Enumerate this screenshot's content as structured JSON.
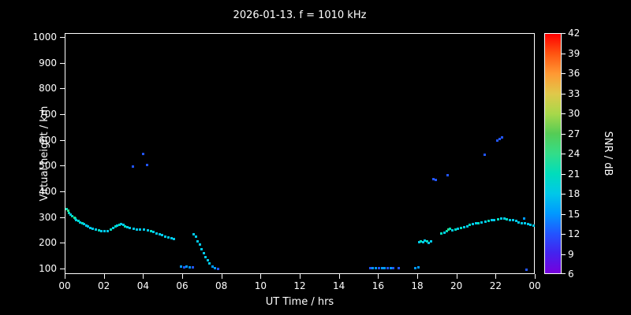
{
  "title": "2026-01-13. f = 1010 kHz",
  "colors": {
    "background": "#000000",
    "foreground": "#ffffff"
  },
  "chart_data": {
    "type": "scatter",
    "title": "2026-01-13. f = 1010 kHz",
    "xlabel": "UT Time / hrs",
    "ylabel": "Virtual height / km",
    "xlim": [
      0,
      24
    ],
    "ylim": [
      79,
      1015
    ],
    "grid": false,
    "x_tick_hours": [
      0,
      2,
      4,
      6,
      8,
      10,
      12,
      14,
      16,
      18,
      20,
      22,
      24
    ],
    "x_tick_labels": [
      "00",
      "02",
      "04",
      "06",
      "08",
      "10",
      "12",
      "14",
      "16",
      "18",
      "20",
      "22",
      "00"
    ],
    "y_ticks": [
      100,
      200,
      300,
      400,
      500,
      600,
      700,
      800,
      900,
      1000
    ],
    "colorbar": {
      "label": "SNR / dB",
      "ticks": [
        6,
        9,
        12,
        15,
        18,
        21,
        24,
        27,
        30,
        33,
        36,
        39,
        42
      ],
      "colors": [
        "#7700dd",
        "#4422ee",
        "#2255ff",
        "#0099ff",
        "#00c8e8",
        "#00ddbb",
        "#33dd88",
        "#55cc55",
        "#a8d84a",
        "#e0c84a",
        "#ff9933",
        "#ff5511",
        "#ff0000"
      ]
    },
    "points": [
      [
        0.08,
        335,
        21
      ],
      [
        0.15,
        328,
        24
      ],
      [
        0.2,
        318,
        21
      ],
      [
        0.25,
        312,
        18
      ],
      [
        0.35,
        308,
        21
      ],
      [
        0.45,
        300,
        24
      ],
      [
        0.5,
        296,
        21
      ],
      [
        0.55,
        292,
        18
      ],
      [
        0.65,
        288,
        21
      ],
      [
        0.75,
        283,
        18
      ],
      [
        0.85,
        280,
        21
      ],
      [
        0.95,
        276,
        18
      ],
      [
        1.05,
        270,
        18
      ],
      [
        1.15,
        266,
        18
      ],
      [
        1.25,
        262,
        18
      ],
      [
        1.4,
        258,
        18
      ],
      [
        1.55,
        254,
        18
      ],
      [
        1.7,
        252,
        21
      ],
      [
        1.85,
        250,
        18
      ],
      [
        2.0,
        248,
        18
      ],
      [
        2.15,
        250,
        18
      ],
      [
        2.3,
        255,
        21
      ],
      [
        2.45,
        260,
        18
      ],
      [
        2.55,
        266,
        21
      ],
      [
        2.65,
        270,
        18
      ],
      [
        2.75,
        274,
        21
      ],
      [
        2.85,
        276,
        18
      ],
      [
        2.95,
        272,
        18
      ],
      [
        3.05,
        268,
        21
      ],
      [
        3.15,
        264,
        18
      ],
      [
        3.3,
        260,
        18
      ],
      [
        3.45,
        500,
        12
      ],
      [
        3.5,
        258,
        18
      ],
      [
        3.65,
        256,
        18
      ],
      [
        3.8,
        254,
        18
      ],
      [
        3.95,
        550,
        12
      ],
      [
        4.0,
        256,
        18
      ],
      [
        4.15,
        505,
        12
      ],
      [
        4.2,
        252,
        18
      ],
      [
        4.35,
        248,
        21
      ],
      [
        4.5,
        244,
        18
      ],
      [
        4.65,
        240,
        18
      ],
      [
        4.8,
        236,
        18
      ],
      [
        4.95,
        232,
        18
      ],
      [
        5.1,
        228,
        18
      ],
      [
        5.25,
        225,
        18
      ],
      [
        5.4,
        222,
        18
      ],
      [
        5.55,
        218,
        18
      ],
      [
        5.9,
        110,
        15
      ],
      [
        6.05,
        108,
        12
      ],
      [
        6.2,
        110,
        15
      ],
      [
        6.35,
        108,
        15
      ],
      [
        6.5,
        108,
        12
      ],
      [
        6.55,
        235,
        18
      ],
      [
        6.65,
        228,
        18
      ],
      [
        6.75,
        210,
        18
      ],
      [
        6.85,
        195,
        18
      ],
      [
        6.95,
        178,
        18
      ],
      [
        7.05,
        162,
        18
      ],
      [
        7.15,
        148,
        18
      ],
      [
        7.25,
        135,
        18
      ],
      [
        7.35,
        122,
        18
      ],
      [
        7.5,
        112,
        15
      ],
      [
        7.65,
        106,
        15
      ],
      [
        7.8,
        102,
        12
      ],
      [
        15.55,
        104,
        12
      ],
      [
        15.7,
        106,
        15
      ],
      [
        15.85,
        104,
        15
      ],
      [
        16.0,
        106,
        12
      ],
      [
        16.15,
        104,
        15
      ],
      [
        16.3,
        106,
        15
      ],
      [
        16.45,
        104,
        12
      ],
      [
        16.6,
        106,
        15
      ],
      [
        16.75,
        104,
        12
      ],
      [
        17.0,
        104,
        12
      ],
      [
        17.85,
        106,
        15
      ],
      [
        18.0,
        108,
        15
      ],
      [
        18.05,
        205,
        18
      ],
      [
        18.15,
        210,
        21
      ],
      [
        18.25,
        206,
        18
      ],
      [
        18.35,
        212,
        18
      ],
      [
        18.45,
        208,
        21
      ],
      [
        18.55,
        204,
        18
      ],
      [
        18.65,
        210,
        18
      ],
      [
        18.8,
        452,
        12
      ],
      [
        18.9,
        446,
        12
      ],
      [
        19.5,
        465,
        12
      ],
      [
        19.2,
        238,
        21
      ],
      [
        19.35,
        242,
        18
      ],
      [
        19.45,
        248,
        21
      ],
      [
        19.55,
        254,
        24
      ],
      [
        19.65,
        258,
        21
      ],
      [
        19.75,
        252,
        18
      ],
      [
        19.9,
        256,
        21
      ],
      [
        20.05,
        258,
        18
      ],
      [
        20.2,
        262,
        21
      ],
      [
        20.35,
        265,
        18
      ],
      [
        20.5,
        268,
        18
      ],
      [
        20.65,
        272,
        21
      ],
      [
        20.8,
        275,
        18
      ],
      [
        20.95,
        278,
        18
      ],
      [
        21.1,
        280,
        21
      ],
      [
        21.25,
        282,
        18
      ],
      [
        21.4,
        545,
        12
      ],
      [
        21.45,
        284,
        18
      ],
      [
        21.6,
        287,
        21
      ],
      [
        21.75,
        290,
        18
      ],
      [
        21.9,
        292,
        18
      ],
      [
        22.05,
        600,
        12
      ],
      [
        22.15,
        608,
        12
      ],
      [
        22.3,
        614,
        12
      ],
      [
        22.1,
        294,
        21
      ],
      [
        22.25,
        296,
        18
      ],
      [
        22.4,
        298,
        18
      ],
      [
        22.55,
        295,
        21
      ],
      [
        22.7,
        292,
        18
      ],
      [
        22.85,
        290,
        18
      ],
      [
        23.0,
        287,
        18
      ],
      [
        23.15,
        283,
        18
      ],
      [
        23.3,
        280,
        18
      ],
      [
        23.4,
        296,
        15
      ],
      [
        23.45,
        278,
        18
      ],
      [
        23.55,
        100,
        12
      ],
      [
        23.6,
        276,
        18
      ],
      [
        23.75,
        273,
        18
      ],
      [
        23.9,
        271,
        18
      ]
    ]
  }
}
